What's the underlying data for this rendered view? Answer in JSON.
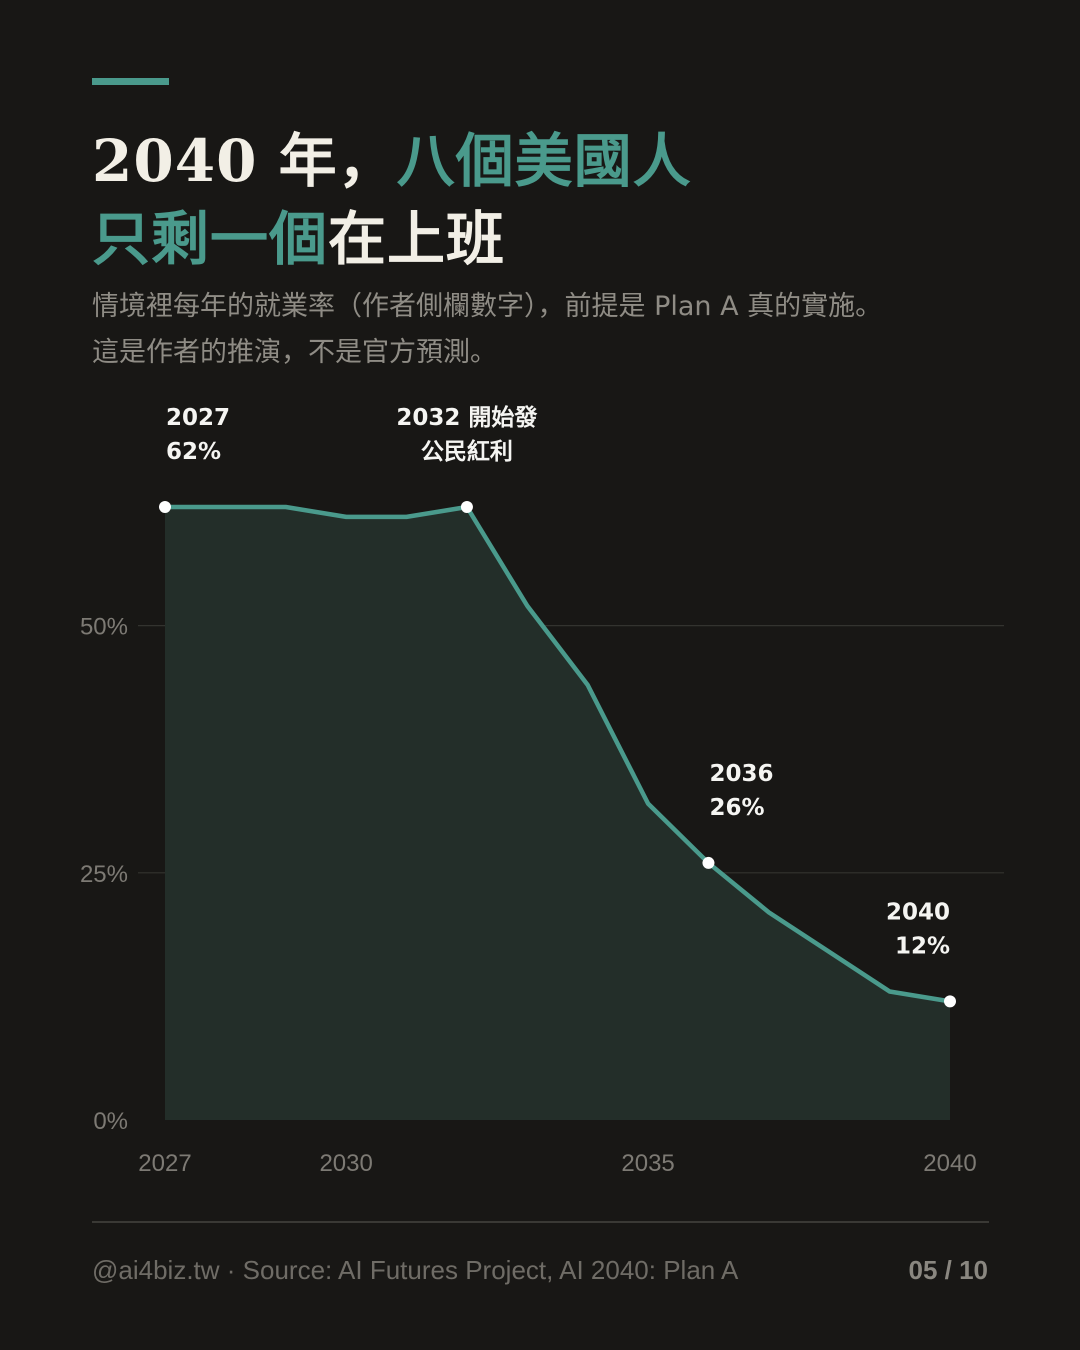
{
  "header": {
    "title_plain_1": "2040 年，",
    "title_highlight_1": "八個美國人",
    "title_highlight_2": "只剩一個",
    "title_plain_2": "在上班",
    "subtitle_line_1": "情境裡每年的就業率（作者側欄數字），前提是 Plan A 真的實施。",
    "subtitle_line_2": "這是作者的推演，不是官方預測。"
  },
  "chart_data": {
    "type": "area",
    "x": [
      2027,
      2028,
      2029,
      2030,
      2031,
      2032,
      2033,
      2034,
      2035,
      2036,
      2037,
      2038,
      2039,
      2040
    ],
    "values": [
      62,
      62,
      62,
      61,
      61,
      62,
      52,
      44,
      32,
      26,
      21,
      17,
      13,
      12
    ],
    "xticks": [
      "2027",
      "2030",
      "2035",
      "2040"
    ],
    "yticks": [
      "0%",
      "25%",
      "50%"
    ],
    "ylim": [
      0,
      62
    ],
    "xlim": [
      2027,
      2040
    ],
    "grid": "horizontal",
    "annotations": [
      {
        "x": 2027,
        "y": 62,
        "line1": "2027",
        "line2": "62%",
        "align": "start"
      },
      {
        "x": 2032,
        "y": 62,
        "line1": "2032 開始發",
        "line2": "公民紅利",
        "align": "middle"
      },
      {
        "x": 2036,
        "y": 26,
        "line1": "2036",
        "line2": "26%",
        "align": "start"
      },
      {
        "x": 2040,
        "y": 12,
        "line1": "2040",
        "line2": "12%",
        "align": "end"
      }
    ],
    "colors": {
      "line": "#4a9a8c",
      "fill": "#232e29",
      "grid": "#33332f",
      "tick_text": "#7d7a74",
      "label_text": "#f5f5f2",
      "marker": "#ffffff"
    }
  },
  "footer": {
    "source": "@ai4biz.tw · Source: AI Futures Project, AI 2040: Plan A",
    "page": "05 / 10"
  }
}
